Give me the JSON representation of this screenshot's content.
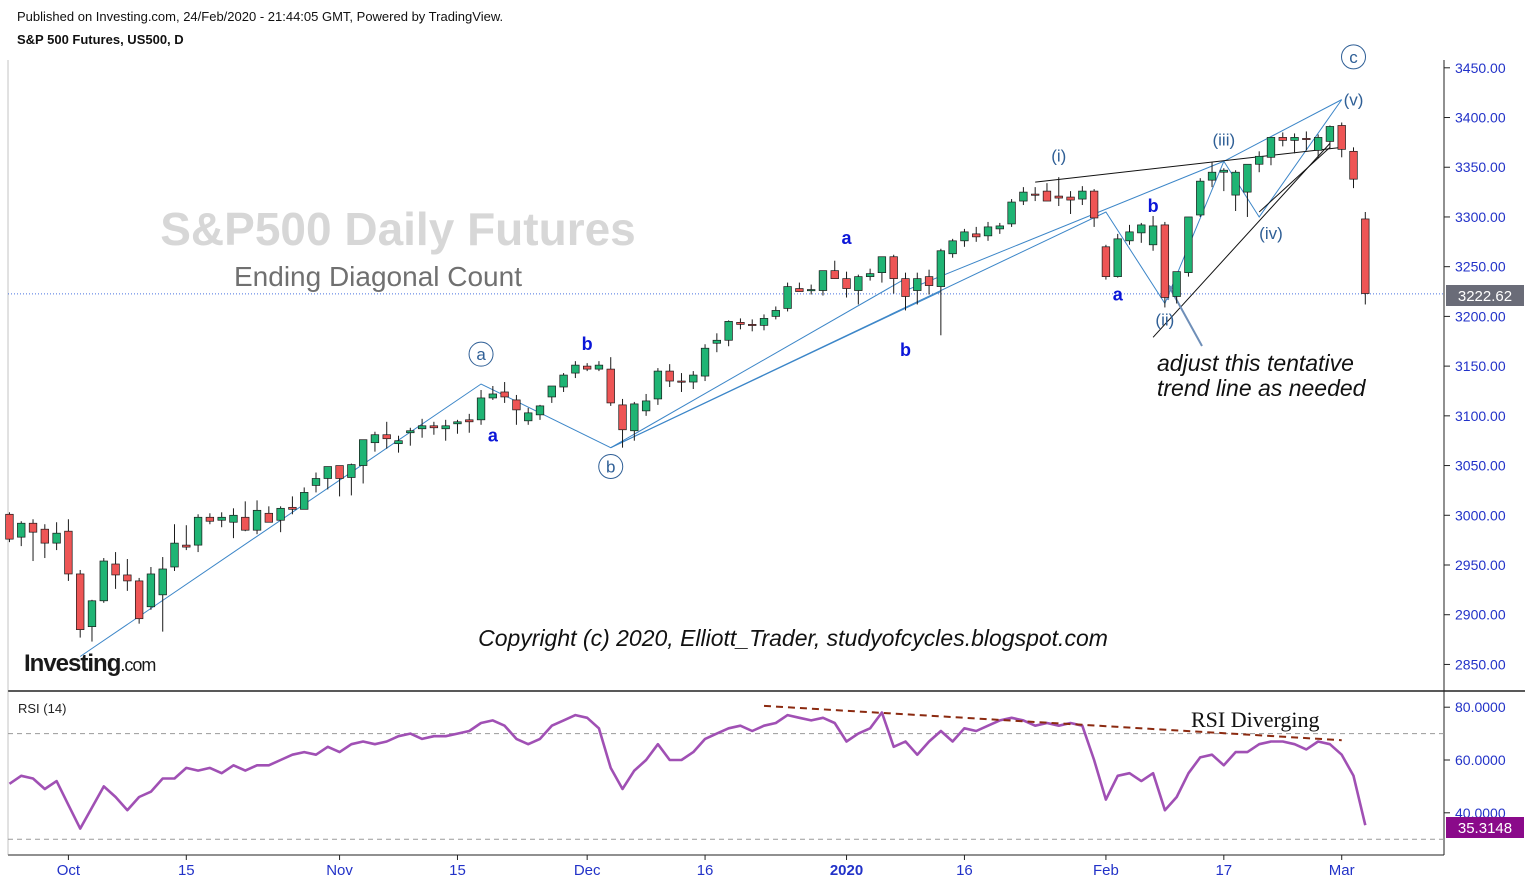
{
  "header": {
    "published": "Published on Investing.com, 24/Feb/2020 - 21:44:05 GMT, Powered by TradingView.",
    "symbol": "S&P 500 Futures, US500, D"
  },
  "watermark": {
    "title": "S&P500 Daily Futures",
    "subtitle": "Ending Diagonal Count",
    "copyright": "Copyright (c) 2020, Elliott_Trader, studyofcycles.blogspot.com",
    "logo": "Investing.com"
  },
  "annotations": {
    "note_line1": "adjust this tentative",
    "note_line2": "trend line as needed",
    "rsi_note": "RSI Diverging"
  },
  "rsi_panel": {
    "label": "RSI (14)",
    "current": "35.3148"
  },
  "colors": {
    "up": "#1fb474",
    "down": "#ee5555",
    "axis_text": "#2232c8",
    "wave_label": "#2f5f96",
    "letter_label": "#0b16d8",
    "trendline": "#3c86c8",
    "rsi_line": "#a050b4",
    "rsi_badge": "#8a0a8a",
    "divergence": "#8b2a10",
    "price_line": "#4a74e0"
  },
  "chart_data": [
    {
      "type": "candlestick",
      "title": "S&P 500 Futures, US500, D",
      "last_price": 3222.62,
      "y_ticks": [
        2850,
        2900,
        2950,
        3000,
        3050,
        3100,
        3150,
        3200,
        3250,
        3300,
        3350,
        3400,
        3450
      ],
      "x_labels": [
        {
          "day": 0,
          "label": "Oct"
        },
        {
          "day": 10,
          "label": "15"
        },
        {
          "day": 23,
          "label": "Nov"
        },
        {
          "day": 33,
          "label": "15"
        },
        {
          "day": 44,
          "label": "Dec"
        },
        {
          "day": 54,
          "label": "16"
        },
        {
          "day": 66,
          "label": "2020"
        },
        {
          "day": 76,
          "label": "16"
        },
        {
          "day": 88,
          "label": "Feb"
        },
        {
          "day": 98,
          "label": "17"
        },
        {
          "day": 108,
          "label": "Mar"
        }
      ],
      "ohlc": [
        [
          -5,
          3001,
          3003,
          2973,
          2976
        ],
        [
          -4,
          2978,
          2994,
          2969,
          2992
        ],
        [
          -3,
          2992,
          2996,
          2954,
          2983
        ],
        [
          -2,
          2986,
          2991,
          2957,
          2972
        ],
        [
          -1,
          2972,
          2993,
          2965,
          2982
        ],
        [
          0,
          2984,
          2996,
          2934,
          2941
        ],
        [
          1,
          2941,
          2945,
          2877,
          2885
        ],
        [
          2,
          2888,
          2915,
          2873,
          2914
        ],
        [
          3,
          2914,
          2957,
          2912,
          2954
        ],
        [
          4,
          2951,
          2963,
          2926,
          2940
        ],
        [
          5,
          2940,
          2956,
          2924,
          2934
        ],
        [
          6,
          2934,
          2937,
          2891,
          2896
        ],
        [
          7,
          2908,
          2948,
          2905,
          2941
        ],
        [
          8,
          2920,
          2958,
          2883,
          2946
        ],
        [
          9,
          2948,
          2991,
          2944,
          2972
        ],
        [
          10,
          2970,
          2990,
          2965,
          2968
        ],
        [
          11,
          2970,
          3001,
          2963,
          2998
        ],
        [
          12,
          2998,
          3002,
          2991,
          2994
        ],
        [
          13,
          2995,
          3003,
          2988,
          2998
        ],
        [
          14,
          2993,
          3007,
          2977,
          3000
        ],
        [
          15,
          2998,
          3014,
          2984,
          2985
        ],
        [
          16,
          2985,
          3015,
          2981,
          3005
        ],
        [
          17,
          3002,
          3009,
          2993,
          2993
        ],
        [
          18,
          2995,
          3009,
          2983,
          3007
        ],
        [
          19,
          3008,
          3019,
          3001,
          3006
        ],
        [
          20,
          3006,
          3028,
          3006,
          3023
        ],
        [
          21,
          3030,
          3043,
          3023,
          3037
        ],
        [
          22,
          3037,
          3049,
          3026,
          3049
        ],
        [
          23,
          3050,
          3046,
          3019,
          3037
        ],
        [
          24,
          3038,
          3052,
          3020,
          3051
        ],
        [
          25,
          3050,
          3075,
          3032,
          3076
        ],
        [
          26,
          3073,
          3084,
          3064,
          3081
        ],
        [
          27,
          3081,
          3094,
          3067,
          3077
        ],
        [
          28,
          3072,
          3080,
          3063,
          3075
        ],
        [
          29,
          3083,
          3088,
          3070,
          3085
        ],
        [
          30,
          3087,
          3097,
          3078,
          3090
        ],
        [
          31,
          3090,
          3094,
          3081,
          3088
        ],
        [
          32,
          3087,
          3096,
          3075,
          3090
        ],
        [
          33,
          3092,
          3096,
          3082,
          3094
        ],
        [
          34,
          3096,
          3102,
          3083,
          3094
        ],
        [
          35,
          3096,
          3126,
          3091,
          3118
        ],
        [
          36,
          3118,
          3130,
          3116,
          3122
        ],
        [
          37,
          3124,
          3134,
          3113,
          3119
        ],
        [
          38,
          3116,
          3121,
          3091,
          3106
        ],
        [
          39,
          3095,
          3108,
          3091,
          3103
        ],
        [
          40,
          3101,
          3111,
          3096,
          3110
        ],
        [
          41,
          3119,
          3129,
          3113,
          3130
        ],
        [
          42,
          3129,
          3143,
          3124,
          3141
        ],
        [
          43,
          3143,
          3155,
          3138,
          3151
        ],
        [
          44,
          3150,
          3153,
          3145,
          3147
        ],
        [
          45,
          3147,
          3155,
          3145,
          3151
        ],
        [
          46,
          3147,
          3159,
          3110,
          3113
        ],
        [
          47,
          3111,
          3117,
          3068,
          3086
        ],
        [
          48,
          3085,
          3114,
          3075,
          3112
        ],
        [
          49,
          3105,
          3122,
          3100,
          3115
        ],
        [
          50,
          3117,
          3148,
          3111,
          3145
        ],
        [
          51,
          3145,
          3152,
          3129,
          3135
        ],
        [
          52,
          3135,
          3143,
          3124,
          3134
        ],
        [
          53,
          3134,
          3145,
          3127,
          3141
        ],
        [
          54,
          3140,
          3172,
          3135,
          3168
        ],
        [
          55,
          3173,
          3183,
          3164,
          3176
        ],
        [
          56,
          3176,
          3196,
          3170,
          3195
        ],
        [
          57,
          3194,
          3198,
          3187,
          3192
        ],
        [
          58,
          3192,
          3197,
          3185,
          3191
        ],
        [
          59,
          3191,
          3202,
          3186,
          3198
        ],
        [
          60,
          3200,
          3210,
          3197,
          3206
        ],
        [
          61,
          3208,
          3234,
          3205,
          3230
        ],
        [
          62,
          3228,
          3234,
          3225,
          3225
        ],
        [
          63,
          3226,
          3232,
          3222,
          3227
        ],
        [
          64,
          3226,
          3246,
          3221,
          3246
        ],
        [
          65,
          3246,
          3256,
          3238,
          3238
        ],
        [
          66,
          3238,
          3245,
          3219,
          3228
        ],
        [
          67,
          3226,
          3242,
          3212,
          3240
        ],
        [
          68,
          3240,
          3248,
          3236,
          3243
        ],
        [
          69,
          3244,
          3255,
          3234,
          3260
        ],
        [
          70,
          3260,
          3262,
          3223,
          3238
        ],
        [
          71,
          3238,
          3244,
          3206,
          3220
        ],
        [
          72,
          3226,
          3244,
          3212,
          3238
        ],
        [
          73,
          3240,
          3247,
          3222,
          3231
        ],
        [
          74,
          3230,
          3268,
          3181,
          3266
        ],
        [
          75,
          3263,
          3278,
          3259,
          3276
        ],
        [
          76,
          3276,
          3288,
          3270,
          3285
        ],
        [
          77,
          3283,
          3290,
          3275,
          3280
        ],
        [
          78,
          3281,
          3295,
          3276,
          3290
        ],
        [
          79,
          3288,
          3294,
          3283,
          3291
        ],
        [
          80,
          3293,
          3318,
          3290,
          3315
        ],
        [
          81,
          3316,
          3330,
          3312,
          3325
        ],
        [
          82,
          3323,
          3330,
          3316,
          3322
        ],
        [
          83,
          3326,
          3334,
          3316,
          3316
        ],
        [
          84,
          3321,
          3340,
          3311,
          3319
        ],
        [
          85,
          3320,
          3326,
          3303,
          3317
        ],
        [
          86,
          3318,
          3331,
          3312,
          3326
        ],
        [
          87,
          3326,
          3328,
          3290,
          3299
        ],
        [
          88,
          3270,
          3272,
          3237,
          3240
        ],
        [
          89,
          3240,
          3283,
          3239,
          3278
        ],
        [
          90,
          3276,
          3292,
          3272,
          3285
        ],
        [
          91,
          3284,
          3294,
          3274,
          3292
        ],
        [
          92,
          3272,
          3301,
          3266,
          3291
        ],
        [
          93,
          3292,
          3295,
          3209,
          3219
        ],
        [
          94,
          3220,
          3244,
          3213,
          3245
        ],
        [
          95,
          3244,
          3300,
          3240,
          3300
        ],
        [
          96,
          3302,
          3339,
          3300,
          3336
        ],
        [
          97,
          3337,
          3355,
          3330,
          3345
        ],
        [
          98,
          3345,
          3349,
          3326,
          3347
        ],
        [
          99,
          3322,
          3347,
          3306,
          3345
        ],
        [
          100,
          3325,
          3350,
          3300,
          3353
        ],
        [
          101,
          3353,
          3366,
          3345,
          3361
        ],
        [
          102,
          3360,
          3380,
          3352,
          3380
        ],
        [
          103,
          3380,
          3385,
          3371,
          3377
        ],
        [
          104,
          3377,
          3384,
          3364,
          3380
        ],
        [
          105,
          3379,
          3386,
          3367,
          3378
        ],
        [
          106,
          3367,
          3383,
          3359,
          3380
        ],
        [
          107,
          3376,
          3392,
          3369,
          3391
        ],
        [
          108,
          3392,
          3395,
          3360,
          3368
        ],
        [
          109,
          3366,
          3370,
          3329,
          3338
        ],
        [
          110,
          3298,
          3305,
          3212,
          3223
        ]
      ]
    },
    {
      "type": "line",
      "title": "RSI (14)",
      "y_ticks": [
        40,
        60,
        80
      ],
      "guide_levels": [
        30,
        70
      ],
      "rsi": [
        [
          -5,
          51
        ],
        [
          -4,
          54
        ],
        [
          -3,
          53
        ],
        [
          -2,
          49
        ],
        [
          -1,
          52
        ],
        [
          0,
          43
        ],
        [
          1,
          34
        ],
        [
          2,
          42
        ],
        [
          3,
          50
        ],
        [
          4,
          46
        ],
        [
          5,
          41
        ],
        [
          6,
          46
        ],
        [
          7,
          48
        ],
        [
          8,
          53
        ],
        [
          9,
          53
        ],
        [
          10,
          57
        ],
        [
          11,
          56
        ],
        [
          12,
          57
        ],
        [
          13,
          55
        ],
        [
          14,
          58
        ],
        [
          15,
          56
        ],
        [
          16,
          58
        ],
        [
          17,
          58
        ],
        [
          18,
          60
        ],
        [
          19,
          62
        ],
        [
          20,
          63
        ],
        [
          21,
          62
        ],
        [
          22,
          65
        ],
        [
          23,
          63
        ],
        [
          24,
          66
        ],
        [
          25,
          67
        ],
        [
          26,
          66
        ],
        [
          27,
          67
        ],
        [
          28,
          69
        ],
        [
          29,
          70
        ],
        [
          30,
          68
        ],
        [
          31,
          69
        ],
        [
          32,
          69
        ],
        [
          33,
          70
        ],
        [
          34,
          71
        ],
        [
          35,
          74
        ],
        [
          36,
          75
        ],
        [
          37,
          73
        ],
        [
          38,
          68
        ],
        [
          39,
          66
        ],
        [
          40,
          68
        ],
        [
          41,
          73
        ],
        [
          42,
          75
        ],
        [
          43,
          77
        ],
        [
          44,
          76
        ],
        [
          45,
          72
        ],
        [
          46,
          57
        ],
        [
          47,
          49
        ],
        [
          48,
          56
        ],
        [
          49,
          60
        ],
        [
          50,
          66
        ],
        [
          51,
          60
        ],
        [
          52,
          60
        ],
        [
          53,
          63
        ],
        [
          54,
          68
        ],
        [
          55,
          70
        ],
        [
          56,
          72
        ],
        [
          57,
          73
        ],
        [
          58,
          71
        ],
        [
          59,
          73
        ],
        [
          60,
          74
        ],
        [
          61,
          77
        ],
        [
          62,
          76
        ],
        [
          63,
          75
        ],
        [
          64,
          76
        ],
        [
          65,
          74
        ],
        [
          66,
          67
        ],
        [
          67,
          70
        ],
        [
          68,
          72
        ],
        [
          69,
          78
        ],
        [
          70,
          65
        ],
        [
          71,
          67
        ],
        [
          72,
          62
        ],
        [
          73,
          67
        ],
        [
          74,
          71
        ],
        [
          75,
          67
        ],
        [
          76,
          72
        ],
        [
          77,
          71
        ],
        [
          78,
          73
        ],
        [
          79,
          75
        ],
        [
          80,
          76
        ],
        [
          81,
          75
        ],
        [
          82,
          73
        ],
        [
          83,
          74
        ],
        [
          84,
          73
        ],
        [
          85,
          74
        ],
        [
          86,
          73
        ],
        [
          87,
          60
        ],
        [
          88,
          45
        ],
        [
          89,
          54
        ],
        [
          90,
          55
        ],
        [
          91,
          52
        ],
        [
          92,
          55
        ],
        [
          93,
          41
        ],
        [
          94,
          46
        ],
        [
          95,
          55
        ],
        [
          96,
          61
        ],
        [
          97,
          62
        ],
        [
          98,
          58
        ],
        [
          99,
          63
        ],
        [
          100,
          63
        ],
        [
          101,
          66
        ],
        [
          102,
          67
        ],
        [
          103,
          67
        ],
        [
          104,
          66
        ],
        [
          105,
          64
        ],
        [
          106,
          67
        ],
        [
          107,
          66
        ],
        [
          108,
          62
        ],
        [
          109,
          54
        ],
        [
          110,
          35.31
        ]
      ]
    }
  ]
}
